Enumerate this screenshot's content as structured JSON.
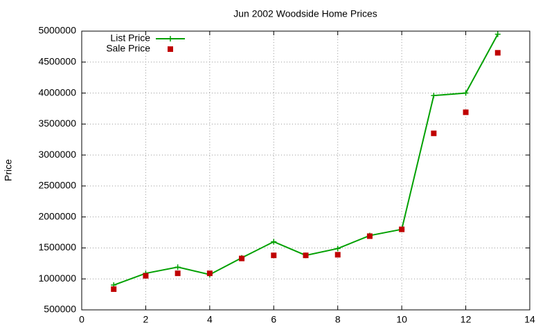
{
  "chart_data": {
    "type": "line",
    "title": "Jun 2002 Woodside Home Prices",
    "y_label": "Price",
    "x": [
      1,
      2,
      3,
      4,
      5,
      6,
      7,
      8,
      9,
      10,
      11,
      12,
      13
    ],
    "series": [
      {
        "name": "List Price",
        "color": "#00a000",
        "mode": "linespoints",
        "marker": "plus",
        "values": [
          900000,
          1090000,
          1190000,
          1070000,
          1340000,
          1600000,
          1380000,
          1490000,
          1700000,
          1800000,
          3960000,
          4000000,
          4950000
        ]
      },
      {
        "name": "Sale Price",
        "color": "#c00000",
        "mode": "points",
        "marker": "square",
        "values": [
          835000,
          1050000,
          1090000,
          1090000,
          1330000,
          1380000,
          1380000,
          1390000,
          1690000,
          1800000,
          3350000,
          3690000,
          4650000
        ]
      }
    ],
    "xlim": [
      0,
      14
    ],
    "xticks": [
      0,
      2,
      4,
      6,
      8,
      10,
      12,
      14
    ],
    "ylim": [
      500000,
      5000000
    ],
    "yticks": [
      500000,
      1000000,
      1500000,
      2000000,
      2500000,
      3000000,
      3500000,
      4000000,
      4500000,
      5000000
    ],
    "grid": true,
    "legend": "top-left"
  }
}
